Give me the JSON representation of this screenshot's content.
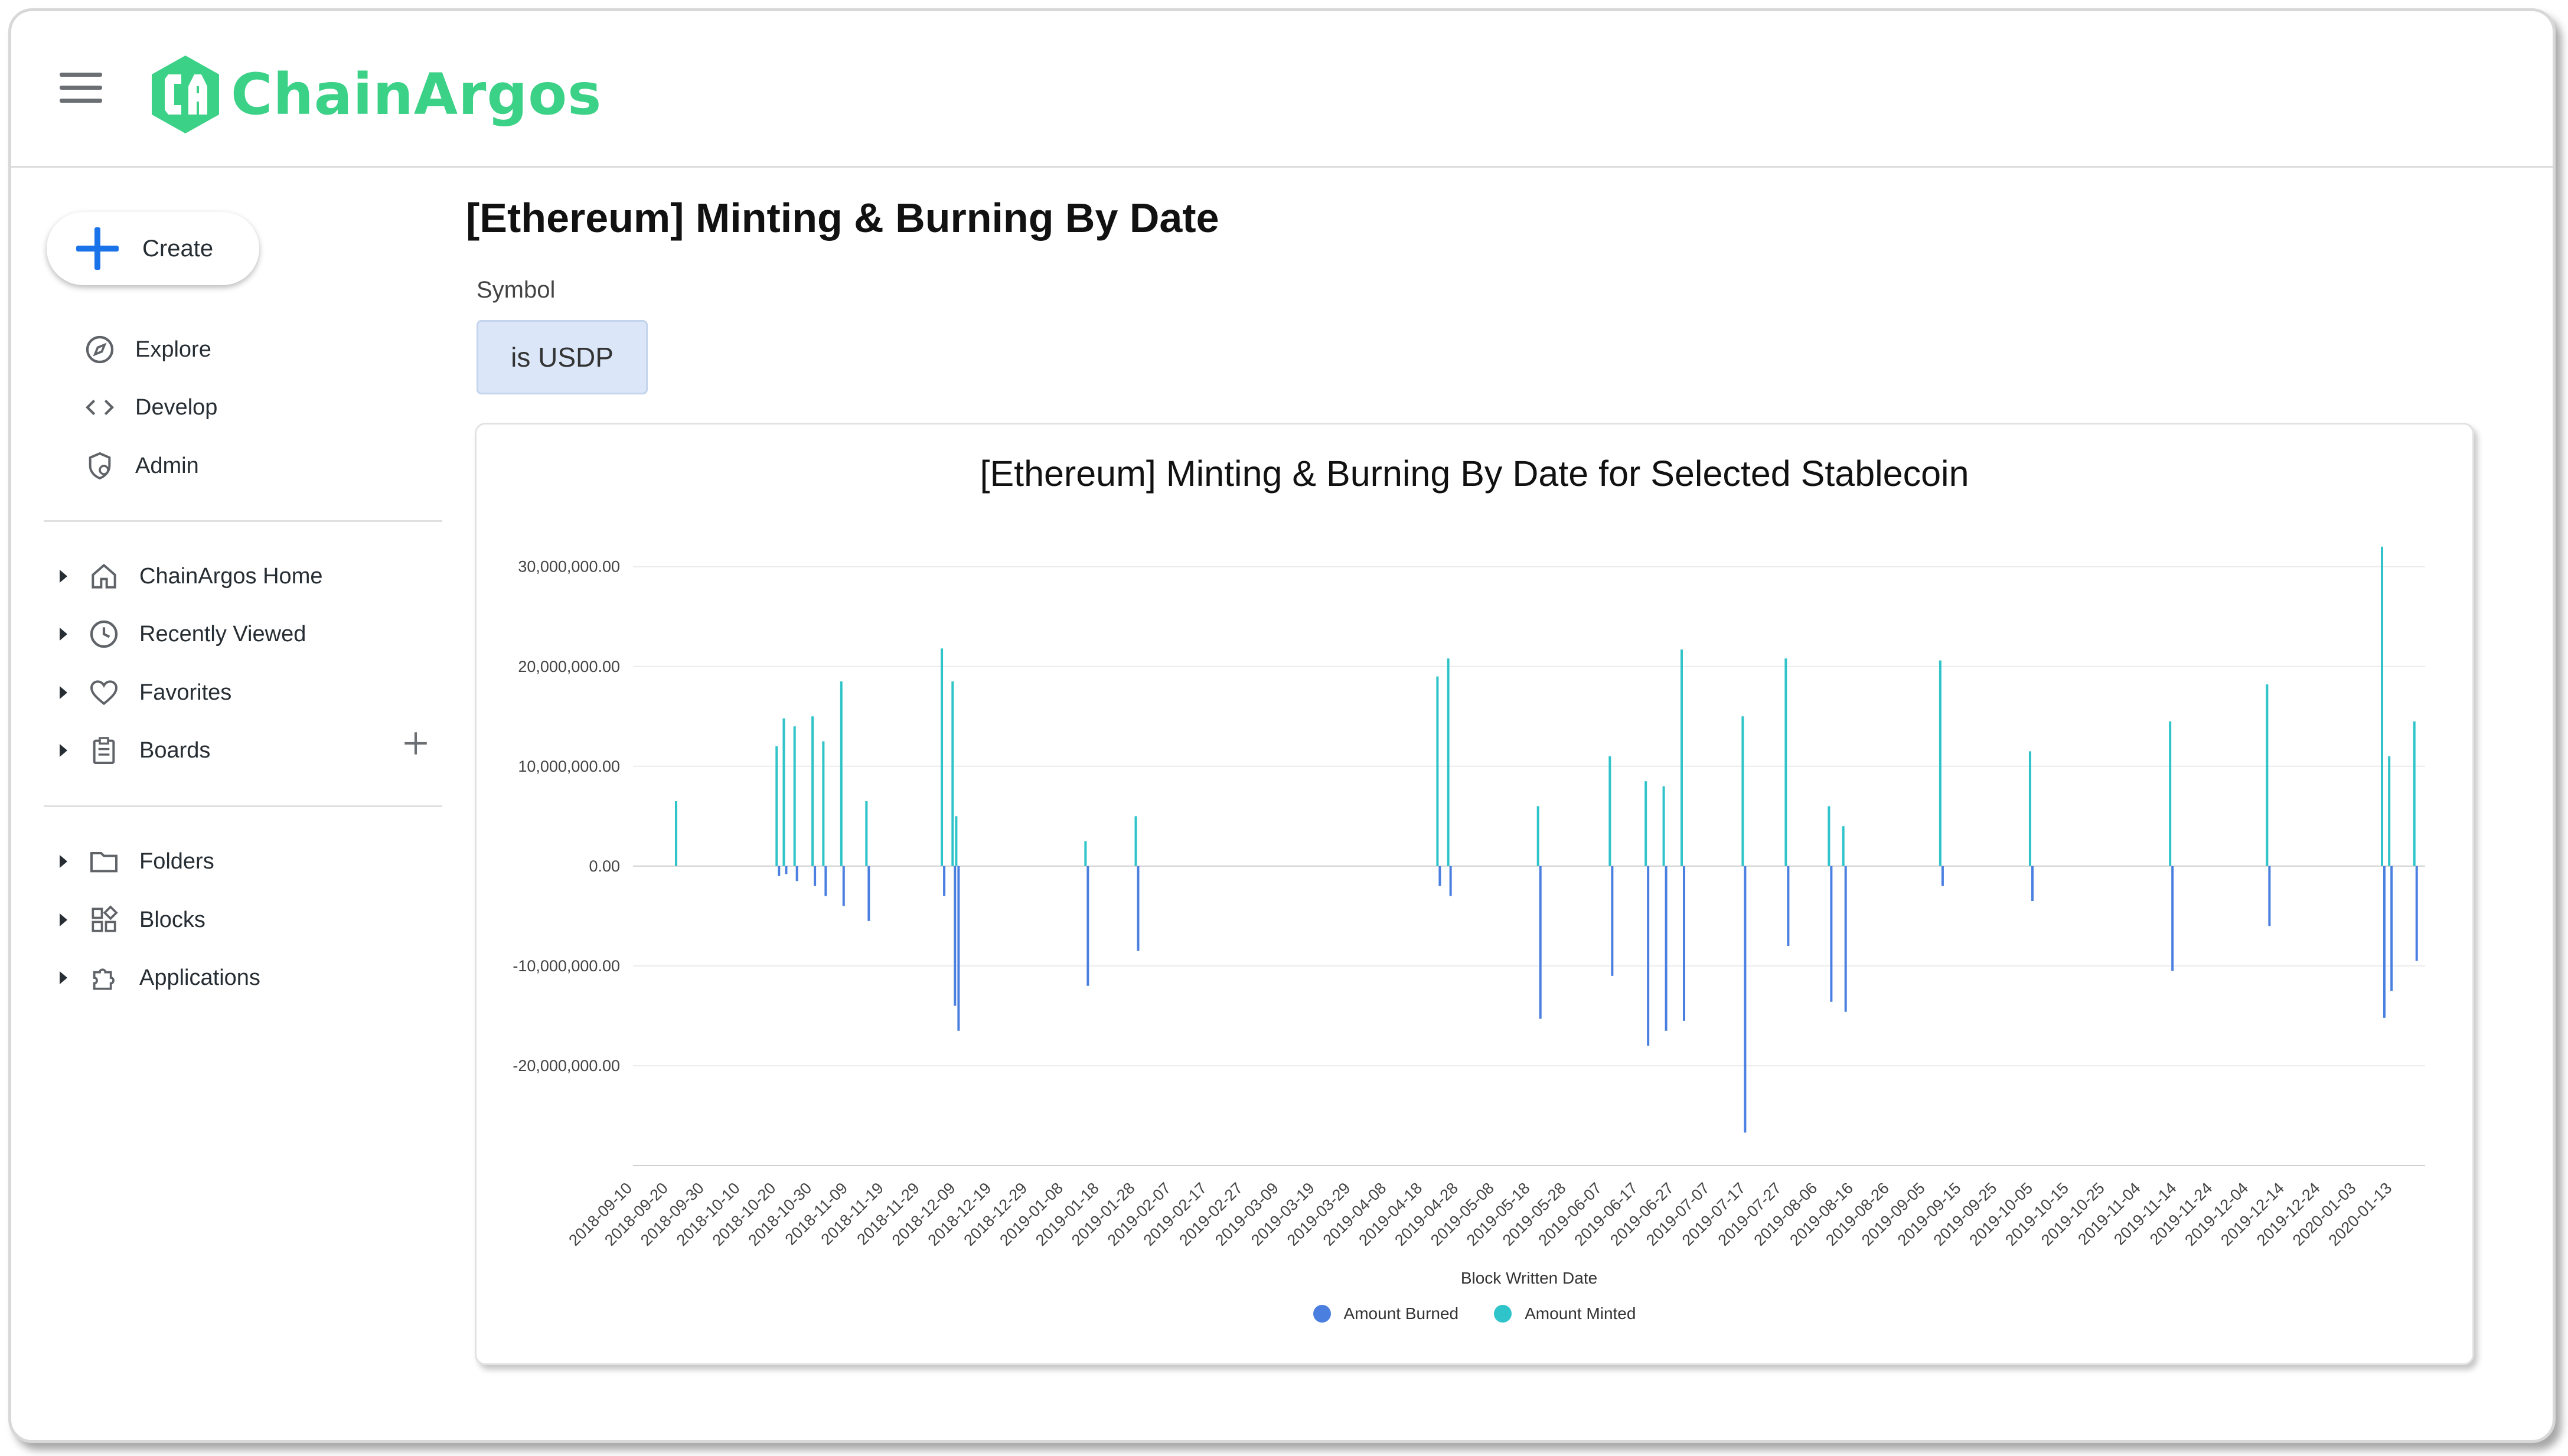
{
  "app": {
    "brand": "ChainArgos",
    "brand_color": "#3bd187"
  },
  "sidebar": {
    "create_label": "Create",
    "primary": [
      {
        "label": "Explore",
        "icon": "compass-icon"
      },
      {
        "label": "Develop",
        "icon": "code-icon"
      },
      {
        "label": "Admin",
        "icon": "admin-gear-icon"
      }
    ],
    "tree_top": [
      {
        "label": "ChainArgos Home",
        "icon": "home-icon"
      },
      {
        "label": "Recently Viewed",
        "icon": "clock-icon"
      },
      {
        "label": "Favorites",
        "icon": "heart-icon"
      },
      {
        "label": "Boards",
        "icon": "clipboard-icon"
      }
    ],
    "tree_bottom": [
      {
        "label": "Folders",
        "icon": "folder-icon"
      },
      {
        "label": "Blocks",
        "icon": "blocks-icon"
      },
      {
        "label": "Applications",
        "icon": "puzzle-icon"
      }
    ]
  },
  "main": {
    "title": "[Ethereum] Minting & Burning By Date",
    "filter": {
      "label": "Symbol",
      "value": "is USDP"
    }
  },
  "chart_data": {
    "type": "bar",
    "title": "[Ethereum] Minting & Burning By Date for Selected Stablecoin",
    "xlabel": "Block Written Date",
    "ylabel": "",
    "ylim": [
      -30000000,
      33000000
    ],
    "y_ticks": [
      30000000,
      20000000,
      10000000,
      0,
      -10000000,
      -20000000
    ],
    "y_tick_labels": [
      "30,000,000.00",
      "20,000,000.00",
      "10,000,000.00",
      "0.00",
      "-10,000,000.00",
      "-20,000,000.00"
    ],
    "x_tick_labels": [
      "2018-09-10",
      "2018-09-20",
      "2018-09-30",
      "2018-10-10",
      "2018-10-20",
      "2018-10-30",
      "2018-11-09",
      "2018-11-19",
      "2018-11-29",
      "2018-12-09",
      "2018-12-19",
      "2018-12-29",
      "2019-01-08",
      "2019-01-18",
      "2019-01-28",
      "2019-02-07",
      "2019-02-17",
      "2019-02-27",
      "2019-03-09",
      "2019-03-19",
      "2019-03-29",
      "2019-04-08",
      "2019-04-18",
      "2019-04-28",
      "2019-05-08",
      "2019-05-18",
      "2019-05-28",
      "2019-06-07",
      "2019-06-17",
      "2019-06-27",
      "2019-07-07",
      "2019-07-17",
      "2019-07-27",
      "2019-08-06",
      "2019-08-16",
      "2019-08-26",
      "2019-09-05",
      "2019-09-15",
      "2019-09-25",
      "2019-10-05",
      "2019-10-15",
      "2019-10-25",
      "2019-11-04",
      "2019-11-14",
      "2019-11-24",
      "2019-12-04",
      "2019-12-14",
      "2019-12-24",
      "2020-01-03",
      "2020-01-13"
    ],
    "x_start": "2018-09-10",
    "x_end": "2020-01-22",
    "grid": true,
    "legend_position": "bottom",
    "series": [
      {
        "name": "Amount Burned",
        "color": "#4a7fe0"
      },
      {
        "name": "Amount Minted",
        "color": "#2ec4c9"
      }
    ],
    "events": [
      {
        "date": "2018-09-22",
        "minted": 6500000,
        "burned": 0
      },
      {
        "date": "2018-10-20",
        "minted": 12000000,
        "burned": -1000000
      },
      {
        "date": "2018-10-22",
        "minted": 14800000,
        "burned": -800000
      },
      {
        "date": "2018-10-25",
        "minted": 14000000,
        "burned": -1500000
      },
      {
        "date": "2018-10-30",
        "minted": 15000000,
        "burned": -2000000
      },
      {
        "date": "2018-11-02",
        "minted": 12500000,
        "burned": -3000000
      },
      {
        "date": "2018-11-07",
        "minted": 18500000,
        "burned": -4000000
      },
      {
        "date": "2018-11-14",
        "minted": 6500000,
        "burned": -5500000
      },
      {
        "date": "2018-12-05",
        "minted": 21800000,
        "burned": -3000000
      },
      {
        "date": "2018-12-08",
        "minted": 18500000,
        "burned": -14000000
      },
      {
        "date": "2018-12-09",
        "minted": 5000000,
        "burned": -16500000
      },
      {
        "date": "2019-01-14",
        "minted": 2500000,
        "burned": -12000000
      },
      {
        "date": "2019-01-28",
        "minted": 5000000,
        "burned": -8500000
      },
      {
        "date": "2019-04-22",
        "minted": 19000000,
        "burned": -2000000
      },
      {
        "date": "2019-04-25",
        "minted": 20800000,
        "burned": -3000000
      },
      {
        "date": "2019-05-20",
        "minted": 6000000,
        "burned": -15300000
      },
      {
        "date": "2019-06-09",
        "minted": 11000000,
        "burned": -11000000
      },
      {
        "date": "2019-06-19",
        "minted": 8500000,
        "burned": -18000000
      },
      {
        "date": "2019-06-24",
        "minted": 8000000,
        "burned": -16500000
      },
      {
        "date": "2019-06-29",
        "minted": 21700000,
        "burned": -15500000
      },
      {
        "date": "2019-07-16",
        "minted": 15000000,
        "burned": -26700000
      },
      {
        "date": "2019-07-28",
        "minted": 20800000,
        "burned": -8000000
      },
      {
        "date": "2019-08-09",
        "minted": 6000000,
        "burned": -13600000
      },
      {
        "date": "2019-08-13",
        "minted": 4000000,
        "burned": -14600000
      },
      {
        "date": "2019-09-09",
        "minted": 20600000,
        "burned": -2000000
      },
      {
        "date": "2019-10-04",
        "minted": 11500000,
        "burned": -3500000
      },
      {
        "date": "2019-11-12",
        "minted": 14500000,
        "burned": -10500000
      },
      {
        "date": "2019-12-09",
        "minted": 18200000,
        "burned": -6000000
      },
      {
        "date": "2020-01-10",
        "minted": 32000000,
        "burned": -15200000
      },
      {
        "date": "2020-01-12",
        "minted": 11000000,
        "burned": -12500000
      },
      {
        "date": "2020-01-19",
        "minted": 14500000,
        "burned": -9500000
      }
    ]
  }
}
